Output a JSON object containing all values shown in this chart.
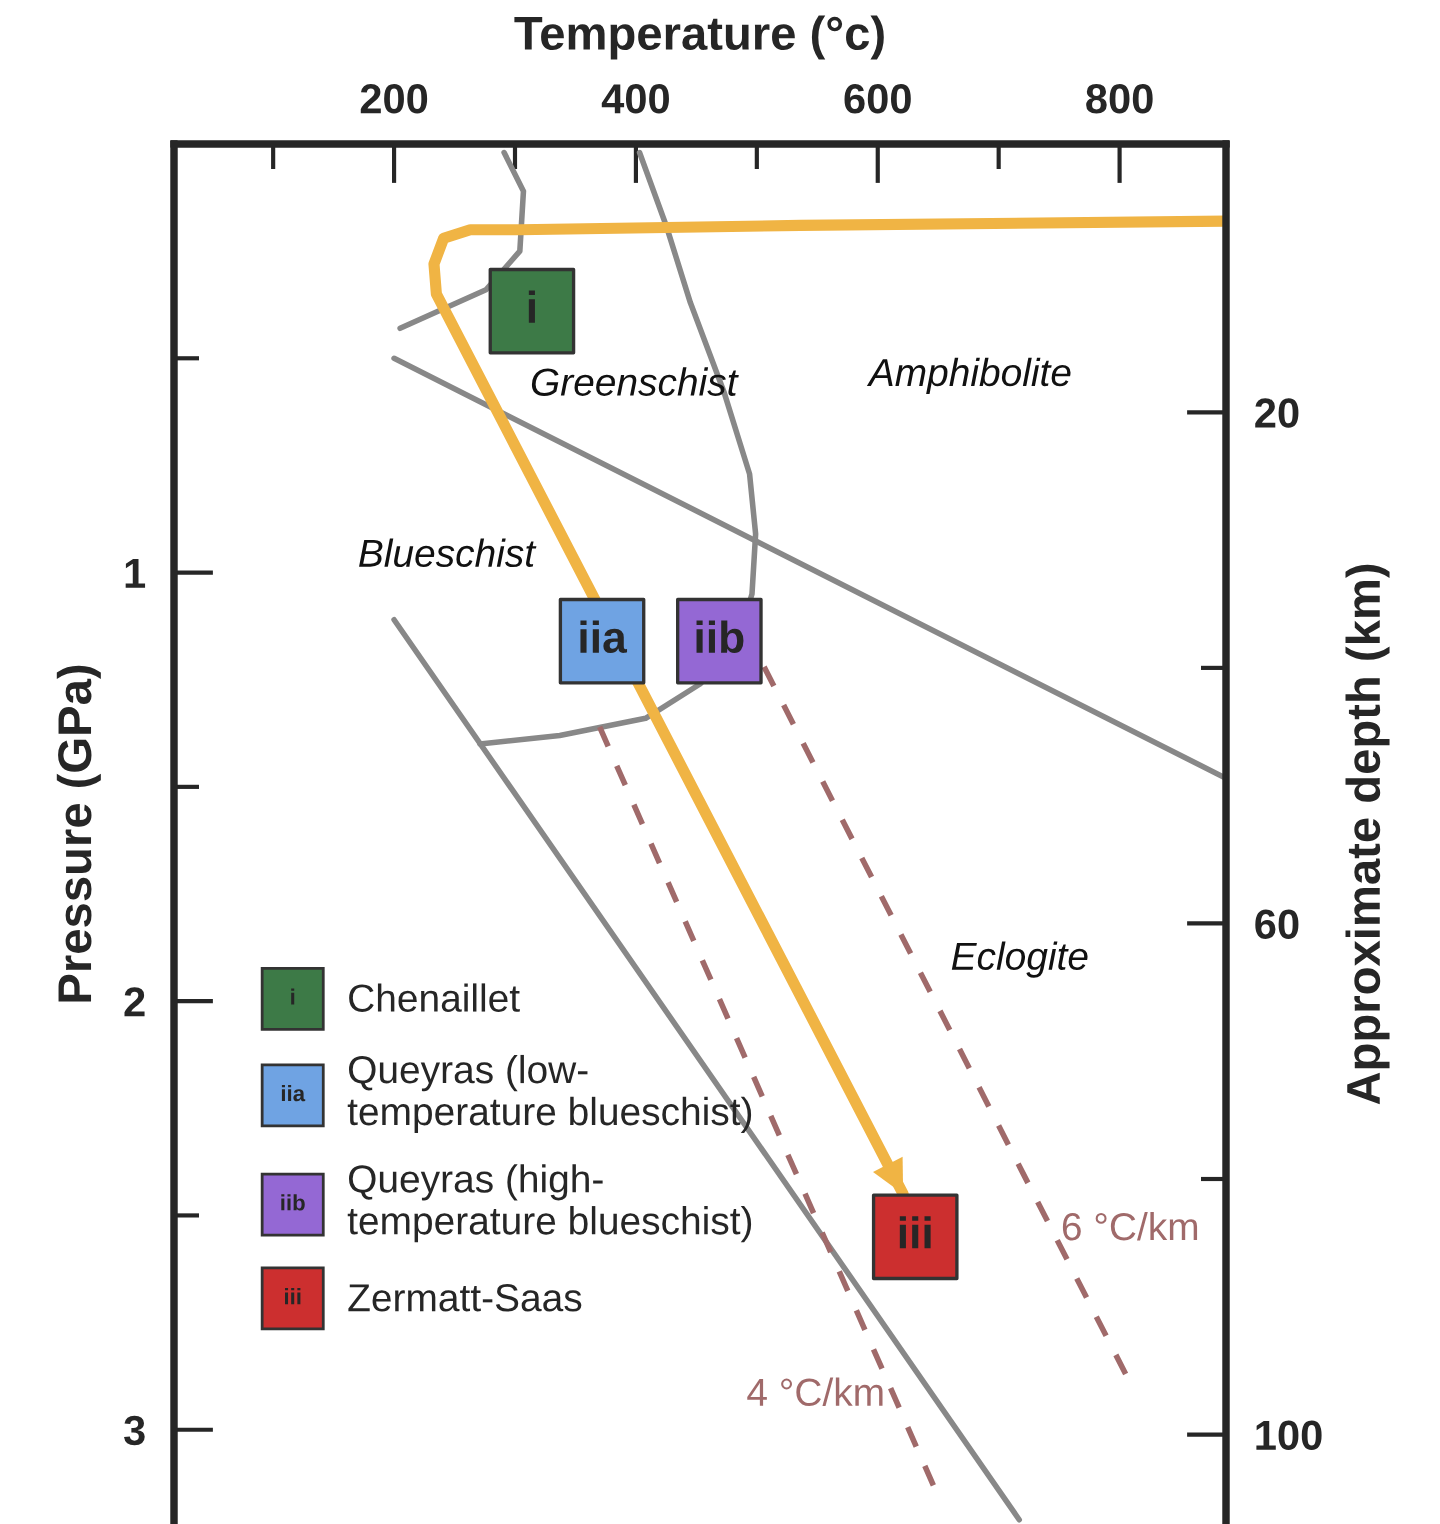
{
  "chart_data": {
    "type": "line",
    "xlabel": "Temperature (°c)",
    "ylabel": "Pressure (GPa)",
    "y2label": "Approximate depth (km)",
    "xlim": [
      18,
      888
    ],
    "xticks": [
      {
        "value": 100,
        "label": null
      },
      200,
      {
        "value": 300,
        "label": null
      },
      400,
      {
        "value": 500,
        "label": null
      },
      600,
      {
        "value": 700,
        "label": null
      },
      800
    ],
    "ylim": [
      3.22,
      0
    ],
    "yticks": [
      {
        "value": 0.5,
        "label": null
      },
      1,
      {
        "value": 1.5,
        "label": null
      },
      2,
      {
        "value": 2.5,
        "label": null
      },
      3
    ],
    "y2lim": [
      107,
      -1
    ],
    "y2ticks": [
      20,
      {
        "value": 40,
        "label": null
      },
      60,
      {
        "value": 80,
        "label": null
      },
      100
    ],
    "grid": false,
    "legend": "bottom left",
    "series": [
      {
        "color": "#888888",
        "x": [
          403,
          425,
          445,
          473,
          494,
          499,
          496,
          483,
          453,
          408,
          337,
          271
        ],
        "values": [
          0.02,
          0.19,
          0.37,
          0.58,
          0.77,
          0.91,
          1.05,
          1.17,
          1.26,
          1.34,
          1.38,
          1.4
        ]
      },
      {
        "color": "#888888",
        "x": [
          291,
          307,
          304,
          276,
          205
        ],
        "values": [
          0.02,
          0.11,
          0.25,
          0.34,
          0.43
        ]
      },
      {
        "color": "#888888",
        "x": [
          200,
          888
        ],
        "values": [
          0.5,
          1.48
        ]
      },
      {
        "color": "#888888",
        "x": [
          200,
          717
        ],
        "values": [
          1.11,
          3.21
        ]
      },
      {
        "color": "#a06a6a",
        "line_style": "dashed",
        "x": [
          370,
          646
        ],
        "values": [
          1.36,
          3.13
        ]
      },
      {
        "color": "#a06a6a",
        "line_style": "dashed",
        "x": [
          506,
          805
        ],
        "values": [
          1.22,
          2.87
        ]
      },
      {
        "color": "#f0b444",
        "x": [
          888,
          536,
          304,
          263,
          241,
          233,
          235,
          621
        ],
        "values": [
          0.18,
          0.19,
          0.2,
          0.2,
          0.22,
          0.28,
          0.35,
          2.45
        ]
      },
      {
        "type": "scatter",
        "marker": "square",
        "name": "Chenaillet",
        "color": "#3d7a47",
        "x": [
          314
        ],
        "values": [
          0.39
        ],
        "value_labels": [
          "i"
        ]
      },
      {
        "type": "scatter",
        "marker": "square",
        "name": "Queyras (low-\ntemperature blueschist)",
        "color": "#6fa3e3",
        "x": [
          372
        ],
        "values": [
          1.16
        ],
        "value_labels": [
          "iia"
        ]
      },
      {
        "type": "scatter",
        "marker": "square",
        "name": "Queyras (high-\ntemperature blueschist)",
        "color": "#9468d4",
        "x": [
          469
        ],
        "values": [
          1.16
        ],
        "value_labels": [
          "iib"
        ]
      },
      {
        "type": "scatter",
        "marker": "square",
        "name": "Zermatt-Saas",
        "color": "#cc2f2f",
        "x": [
          631
        ],
        "values": [
          2.55
        ],
        "value_labels": [
          "iii"
        ]
      }
    ],
    "annotations": [
      "Greenschist",
      "Amphibolite",
      "Blueschist",
      "Eclogite",
      "6 °C/km",
      "4 °C/km"
    ]
  }
}
